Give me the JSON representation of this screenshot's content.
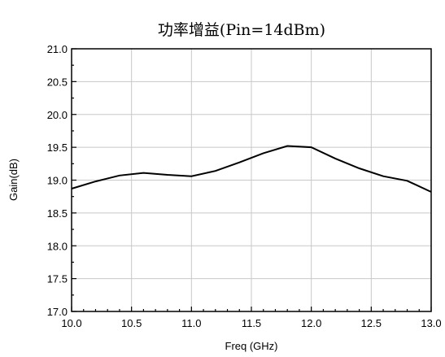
{
  "chart_data": {
    "type": "line",
    "title": "功率增益(Pin=14dBm)",
    "xlabel": "Freq (GHz)",
    "ylabel": "Gain(dB)",
    "xlim": [
      10.0,
      13.0
    ],
    "ylim": [
      17.0,
      21.0
    ],
    "x_ticks": [
      "10.0",
      "10.5",
      "11.0",
      "11.5",
      "12.0",
      "12.5",
      "13.0"
    ],
    "y_ticks": [
      "17.0",
      "17.5",
      "18.0",
      "18.5",
      "19.0",
      "19.5",
      "20.0",
      "20.5",
      "21.0"
    ],
    "grid": true,
    "series": [
      {
        "x": [
          10.0,
          10.2,
          10.4,
          10.6,
          10.8,
          11.0,
          11.2,
          11.4,
          11.6,
          11.8,
          12.0,
          12.2,
          12.4,
          12.6,
          12.8,
          13.0
        ],
        "y": [
          18.87,
          18.98,
          19.07,
          19.11,
          19.08,
          19.06,
          19.14,
          19.27,
          19.41,
          19.52,
          19.5,
          19.33,
          19.18,
          19.06,
          18.99,
          18.82
        ]
      }
    ]
  },
  "colors": {
    "line": "#000000",
    "grid": "#c8c8c8"
  }
}
